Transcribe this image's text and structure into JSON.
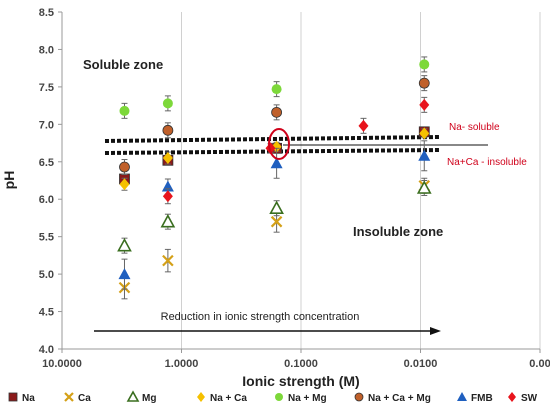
{
  "chart_data": {
    "type": "scatter",
    "title": "",
    "xlabel": "Ionic strength (M)",
    "ylabel": "pH",
    "x_scale": "log",
    "x_reversed": true,
    "xlim": [
      10.0,
      0.001
    ],
    "ylim": [
      4.0,
      8.5
    ],
    "x_ticks": [
      {
        "value": 10,
        "label": "10.0000"
      },
      {
        "value": 1,
        "label": "1.0000"
      },
      {
        "value": 0.1,
        "label": "0.1000"
      },
      {
        "value": 0.01,
        "label": "0.0100"
      },
      {
        "value": 0.001,
        "label": "0.00"
      }
    ],
    "y_ticks": [
      {
        "value": 4.0,
        "label": "4.0"
      },
      {
        "value": 4.5,
        "label": "4.5"
      },
      {
        "value": 5.0,
        "label": "5.0"
      },
      {
        "value": 5.5,
        "label": "5.5"
      },
      {
        "value": 6.0,
        "label": "6.0"
      },
      {
        "value": 6.5,
        "label": "6.5"
      },
      {
        "value": 7.0,
        "label": "7.0"
      },
      {
        "value": 7.5,
        "label": "7.5"
      },
      {
        "value": 8.0,
        "label": "8.0"
      },
      {
        "value": 8.5,
        "label": "8.5"
      }
    ],
    "vertical_gridlines": true,
    "legend_position": "bottom",
    "series": [
      {
        "name": "Na",
        "marker": "square",
        "color": "#8b1a1a",
        "x": [
          3.0,
          1.3,
          0.16,
          0.0093
        ],
        "y": [
          6.27,
          6.52,
          6.68,
          6.9
        ],
        "err": [
          0.05,
          0.05,
          0.05,
          0.05
        ]
      },
      {
        "name": "Ca",
        "marker": "x",
        "color": "#d4a017",
        "x": [
          3.0,
          1.3,
          0.16,
          0.0093
        ],
        "y": [
          4.82,
          5.18,
          5.7,
          6.18
        ],
        "err": [
          0.15,
          0.15,
          0.14,
          0.1
        ]
      },
      {
        "name": "Mg",
        "marker": "triangle-open",
        "color": "#3a6e1f",
        "x": [
          3.0,
          1.3,
          0.16,
          0.0093
        ],
        "y": [
          5.38,
          5.7,
          5.88,
          6.15
        ],
        "err": [
          0.1,
          0.1,
          0.1,
          0.1
        ]
      },
      {
        "name": "Na + Ca",
        "marker": "diamond",
        "color": "#f5c000",
        "x": [
          3.0,
          1.3,
          0.16,
          0.0093
        ],
        "y": [
          6.2,
          6.55,
          6.7,
          6.88
        ],
        "err": [
          0.08,
          0.08,
          0.06,
          0.06
        ]
      },
      {
        "name": "Na + Mg",
        "marker": "circle",
        "color": "#7dd83a",
        "x": [
          3.0,
          1.3,
          0.16,
          0.0093
        ],
        "y": [
          7.18,
          7.28,
          7.47,
          7.8
        ],
        "err": [
          0.1,
          0.1,
          0.1,
          0.1
        ]
      },
      {
        "name": "Na + Ca + Mg",
        "marker": "circle",
        "color": "#c0602a",
        "x": [
          3.0,
          1.3,
          0.16,
          0.0093
        ],
        "y": [
          6.43,
          6.92,
          7.16,
          7.55
        ],
        "err": [
          0.1,
          0.1,
          0.1,
          0.1
        ]
      },
      {
        "name": "FMB",
        "marker": "triangle",
        "color": "#1f5fbf",
        "x": [
          3.0,
          1.3,
          0.16,
          0.0093
        ],
        "y": [
          5.0,
          6.17,
          6.48,
          6.58
        ],
        "err": [
          0.2,
          0.1,
          0.2,
          0.2
        ]
      },
      {
        "name": "SW",
        "marker": "diamond",
        "color": "#e8141c",
        "x": [
          1.3,
          0.18,
          0.03,
          0.0093
        ],
        "y": [
          6.04,
          6.68,
          6.98,
          7.26
        ],
        "err": [
          0.1,
          0.06,
          0.1,
          0.1
        ]
      }
    ],
    "annotations": {
      "soluble_zone": "Soluble zone",
      "insoluble_zone": "Insoluble zone",
      "na_soluble": "Na- soluble",
      "naca_insoluble": "Na+Ca - insoluble",
      "arrow_text": "Reduction in ionic strength concentration"
    }
  }
}
